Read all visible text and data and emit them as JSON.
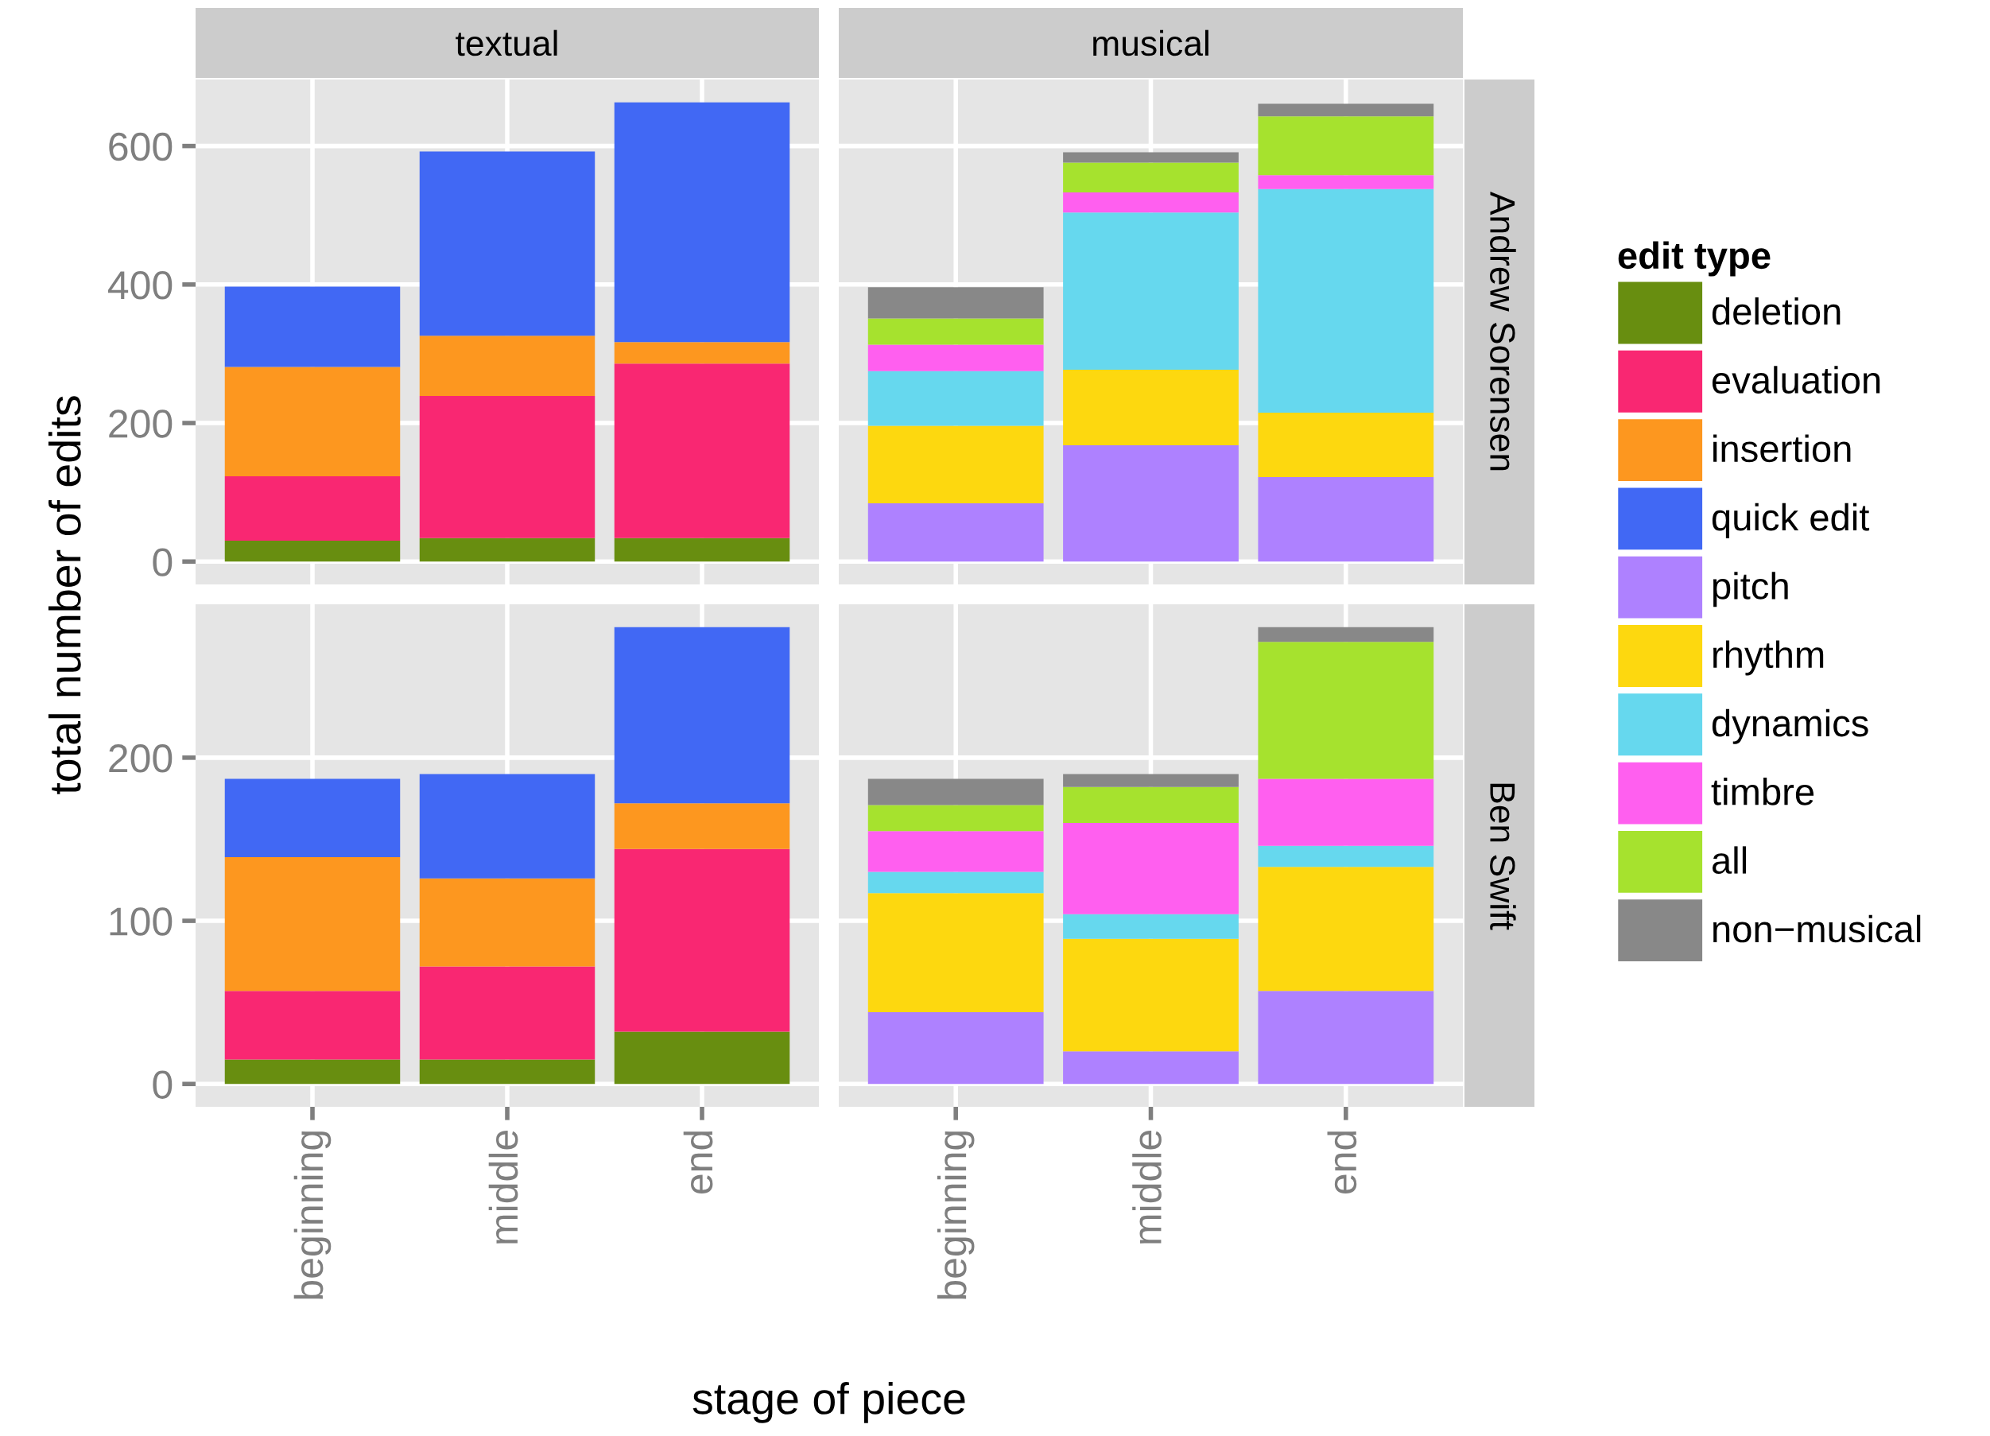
{
  "chart_data": [
    {
      "type": "bar",
      "title": "textual",
      "ylabel": "total number of edits",
      "stacked": true,
      "categories": [
        "beginning",
        "middle",
        "end"
      ],
      "ylim": [
        -33,
        696
      ],
      "yticks": [
        0,
        200,
        400,
        600
      ],
      "grid": true,
      "tick_labels": "y",
      "legend": "right",
      "legend_title": "edit type",
      "series": [
        {
          "name": "deletion",
          "color": "#688e10",
          "values": [
            30,
            34,
            34
          ]
        },
        {
          "name": "evaluation",
          "color": "#f92772",
          "values": [
            93,
            205,
            252
          ]
        },
        {
          "name": "insertion",
          "color": "#fd971f",
          "values": [
            158,
            87,
            31
          ]
        },
        {
          "name": "quick edit",
          "color": "#4168f4",
          "values": [
            116,
            266,
            346
          ]
        }
      ]
    },
    {
      "type": "bar",
      "title": "musical",
      "annotations": [
        "Andrew Sorensen"
      ],
      "stacked": true,
      "categories": [
        "beginning",
        "middle",
        "end"
      ],
      "ylim": [
        -33,
        696
      ],
      "yticks": [
        0,
        200,
        400,
        600
      ],
      "grid": true,
      "tick_labels": false,
      "legend": "right",
      "series": [
        {
          "name": "pitch",
          "color": "#ae81ff",
          "values": [
            84,
            168,
            122
          ]
        },
        {
          "name": "rhythm",
          "color": "#fdd80f",
          "values": [
            112,
            109,
            93
          ]
        },
        {
          "name": "dynamics",
          "color": "#66d8ee",
          "values": [
            79,
            227,
            323
          ]
        },
        {
          "name": "timbre",
          "color": "#ff5fef",
          "values": [
            38,
            29,
            20
          ]
        },
        {
          "name": "all",
          "color": "#a6e22e",
          "values": [
            38,
            43,
            85
          ]
        },
        {
          "name": "non−musical",
          "color": "#888888",
          "values": [
            45,
            15,
            18
          ]
        }
      ]
    },
    {
      "type": "bar",
      "xlabel": "stage of piece",
      "stacked": true,
      "categories": [
        "beginning",
        "middle",
        "end"
      ],
      "ylim": [
        -14,
        294
      ],
      "yticks": [
        0,
        100,
        200
      ],
      "grid": true,
      "legend": "right",
      "series": [
        {
          "name": "deletion",
          "color": "#688e10",
          "values": [
            15,
            15,
            32
          ]
        },
        {
          "name": "evaluation",
          "color": "#f92772",
          "values": [
            42,
            57,
            112
          ]
        },
        {
          "name": "insertion",
          "color": "#fd971f",
          "values": [
            82,
            54,
            28
          ]
        },
        {
          "name": "quick edit",
          "color": "#4168f4",
          "values": [
            48,
            64,
            108
          ]
        }
      ]
    },
    {
      "type": "bar",
      "annotations": [
        "Ben Swift"
      ],
      "stacked": true,
      "categories": [
        "beginning",
        "middle",
        "end"
      ],
      "ylim": [
        -14,
        294
      ],
      "yticks": [
        0,
        100,
        200
      ],
      "grid": true,
      "tick_labels": "x",
      "legend": "right",
      "series": [
        {
          "name": "pitch",
          "color": "#ae81ff",
          "values": [
            44,
            20,
            57
          ]
        },
        {
          "name": "rhythm",
          "color": "#fdd80f",
          "values": [
            73,
            69,
            76
          ]
        },
        {
          "name": "dynamics",
          "color": "#66d8ee",
          "values": [
            13,
            15,
            13
          ]
        },
        {
          "name": "timbre",
          "color": "#ff5fef",
          "values": [
            25,
            56,
            41
          ]
        },
        {
          "name": "all",
          "color": "#a6e22e",
          "values": [
            16,
            22,
            84
          ]
        },
        {
          "name": "non−musical",
          "color": "#888888",
          "values": [
            16,
            8,
            9
          ]
        }
      ]
    }
  ]
}
